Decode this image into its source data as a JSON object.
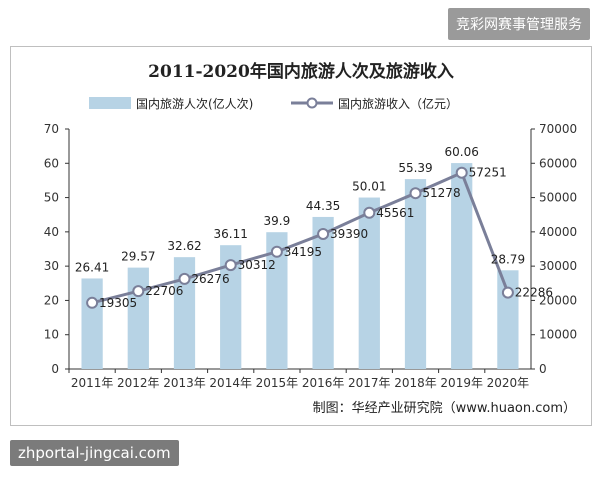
{
  "watermarks": {
    "top": "竞彩网赛事管理服务",
    "bottom": "zhportal-jingcai.com"
  },
  "chart_data": {
    "type": "bar+line",
    "title": "2011-2020年国内旅游人次及旅游收入",
    "source": "制图：华经产业研究院（www.huaon.com）",
    "categories": [
      "2011年",
      "2012年",
      "2013年",
      "2014年",
      "2015年",
      "2016年",
      "2017年",
      "2018年",
      "2019年",
      "2020年"
    ],
    "series": [
      {
        "name": "国内旅游人次(亿人次)",
        "kind": "bar",
        "axis": "left",
        "color": "#b7d3e5",
        "values": [
          26.41,
          29.57,
          32.62,
          36.11,
          39.9,
          44.35,
          50.01,
          55.39,
          60.06,
          28.79
        ]
      },
      {
        "name": "国内旅游收入（亿元）",
        "kind": "line",
        "axis": "right",
        "color": "#7a7f99",
        "values": [
          19305,
          22706,
          26276,
          30312,
          34195,
          39390,
          45561,
          51278,
          57251,
          22286
        ]
      }
    ],
    "y_left": {
      "min": 0,
      "max": 70,
      "ticks": [
        "0",
        "10",
        "20",
        "30",
        "40",
        "50",
        "60",
        "70"
      ]
    },
    "y_right": {
      "min": 0,
      "max": 70000,
      "ticks": [
        "0",
        "10000",
        "20000",
        "30000",
        "40000",
        "50000",
        "60000",
        "70000"
      ]
    },
    "bar_labels": [
      "26.41",
      "29.57",
      "32.62",
      "36.11",
      "39.9",
      "44.35",
      "50.01",
      "55.39",
      "60.06",
      "28.79"
    ],
    "line_labels": [
      "19305",
      "22706",
      "26276",
      "30312",
      "34195",
      "39390",
      "45561",
      "51278",
      "57251",
      "22286"
    ],
    "legend_position": "top"
  }
}
